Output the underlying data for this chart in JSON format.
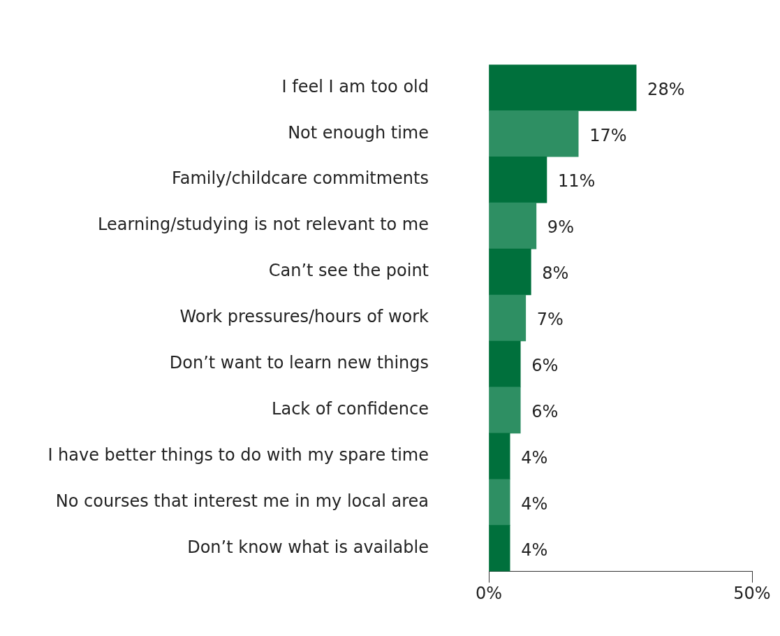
{
  "chart_data": {
    "type": "bar",
    "orientation": "horizontal",
    "categories": [
      "I feel I am too old",
      "Not enough time",
      "Family/childcare commitments",
      "Learning/studying is not relevant to me",
      "Can’t see the point",
      "Work pressures/hours of work",
      "Don’t want to learn new things",
      "Lack of confidence",
      "I have better things to do with my spare time",
      "No courses that interest me in my local area",
      "Don’t know what is available"
    ],
    "values": [
      28,
      17,
      11,
      9,
      8,
      7,
      6,
      6,
      4,
      4,
      4
    ],
    "value_labels": [
      "28%",
      "17%",
      "11%",
      "9%",
      "8%",
      "7%",
      "6%",
      "6%",
      "4%",
      "4%",
      "4%"
    ],
    "colors": [
      "#00703c",
      "#2e8f63",
      "#00703c",
      "#2e8f63",
      "#00703c",
      "#2e8f63",
      "#00703c",
      "#2e8f63",
      "#00703c",
      "#2e8f63",
      "#00703c"
    ],
    "xlim": [
      0,
      50
    ],
    "xticks": [
      {
        "value": 0,
        "label": "0%"
      },
      {
        "value": 50,
        "label": "50%"
      }
    ],
    "grid": false,
    "legend": false
  }
}
